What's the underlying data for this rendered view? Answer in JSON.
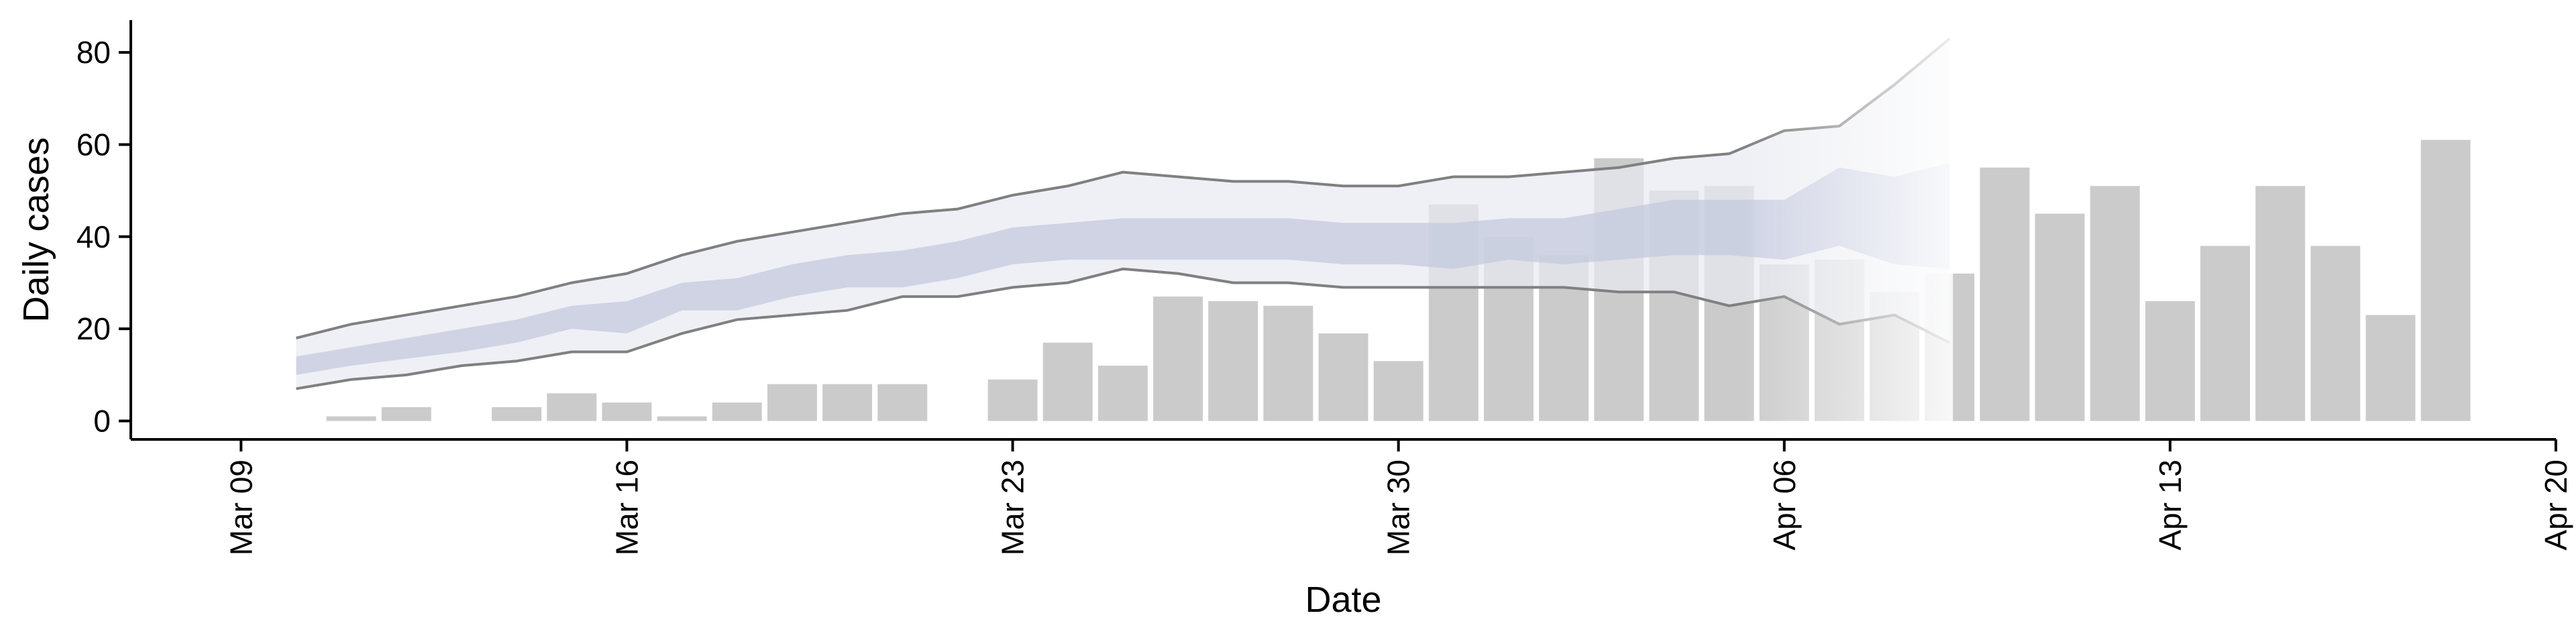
{
  "chart_data": {
    "type": "bar",
    "title": "",
    "xlabel": "Date",
    "ylabel": "Daily cases",
    "x_ticks": [
      "Mar 09",
      "Mar 16",
      "Mar 23",
      "Mar 30",
      "Apr 06",
      "Apr 13",
      "Apr 20"
    ],
    "x_tick_dates": [
      "2020-03-09",
      "2020-03-16",
      "2020-03-23",
      "2020-03-30",
      "2020-04-06",
      "2020-04-13",
      "2020-04-20"
    ],
    "y_ticks": [
      0,
      20,
      40,
      60,
      80
    ],
    "xlim": [
      "2020-03-07",
      "2020-04-20"
    ],
    "ylim": [
      -4,
      87
    ],
    "grid": false,
    "legend": "none",
    "colors": {
      "bars": "#cbcbcb",
      "outer_band": "#e8eaf1",
      "inner_band": "#c4c9dd",
      "interval_line": "#808080",
      "axis": "#000000"
    },
    "bars": [
      {
        "date": "2020-03-10",
        "value": 0
      },
      {
        "date": "2020-03-11",
        "value": 1
      },
      {
        "date": "2020-03-12",
        "value": 3
      },
      {
        "date": "2020-03-13",
        "value": 0
      },
      {
        "date": "2020-03-14",
        "value": 3
      },
      {
        "date": "2020-03-15",
        "value": 6
      },
      {
        "date": "2020-03-16",
        "value": 4
      },
      {
        "date": "2020-03-17",
        "value": 1
      },
      {
        "date": "2020-03-18",
        "value": 4
      },
      {
        "date": "2020-03-19",
        "value": 8
      },
      {
        "date": "2020-03-20",
        "value": 8
      },
      {
        "date": "2020-03-21",
        "value": 8
      },
      {
        "date": "2020-03-22",
        "value": 0
      },
      {
        "date": "2020-03-23",
        "value": 9
      },
      {
        "date": "2020-03-24",
        "value": 17
      },
      {
        "date": "2020-03-25",
        "value": 12
      },
      {
        "date": "2020-03-26",
        "value": 27
      },
      {
        "date": "2020-03-27",
        "value": 26
      },
      {
        "date": "2020-03-28",
        "value": 25
      },
      {
        "date": "2020-03-29",
        "value": 19
      },
      {
        "date": "2020-03-30",
        "value": 13
      },
      {
        "date": "2020-03-31",
        "value": 47
      },
      {
        "date": "2020-04-01",
        "value": 40
      },
      {
        "date": "2020-04-02",
        "value": 36
      },
      {
        "date": "2020-04-03",
        "value": 57
      },
      {
        "date": "2020-04-04",
        "value": 50
      },
      {
        "date": "2020-04-05",
        "value": 51
      },
      {
        "date": "2020-04-06",
        "value": 34
      },
      {
        "date": "2020-04-07",
        "value": 35
      },
      {
        "date": "2020-04-08",
        "value": 28
      },
      {
        "date": "2020-04-09",
        "value": 32
      },
      {
        "date": "2020-04-10",
        "value": 55
      },
      {
        "date": "2020-04-11",
        "value": 45
      },
      {
        "date": "2020-04-12",
        "value": 51
      },
      {
        "date": "2020-04-13",
        "value": 26
      },
      {
        "date": "2020-04-14",
        "value": 38
      },
      {
        "date": "2020-04-15",
        "value": 51
      },
      {
        "date": "2020-04-16",
        "value": 38
      },
      {
        "date": "2020-04-17",
        "value": 23
      },
      {
        "date": "2020-04-18",
        "value": 61
      }
    ],
    "interval": [
      {
        "date": "2020-03-10",
        "upper": 18,
        "inner_upper": 14,
        "inner_lower": 10,
        "lower": 7
      },
      {
        "date": "2020-03-11",
        "upper": 21,
        "inner_upper": 16,
        "inner_lower": 12,
        "lower": 9
      },
      {
        "date": "2020-03-12",
        "upper": 23,
        "inner_upper": 18,
        "inner_lower": 13.5,
        "lower": 10
      },
      {
        "date": "2020-03-13",
        "upper": 25,
        "inner_upper": 20,
        "inner_lower": 15,
        "lower": 12
      },
      {
        "date": "2020-03-14",
        "upper": 27,
        "inner_upper": 22,
        "inner_lower": 17,
        "lower": 13
      },
      {
        "date": "2020-03-15",
        "upper": 30,
        "inner_upper": 25,
        "inner_lower": 20,
        "lower": 15
      },
      {
        "date": "2020-03-16",
        "upper": 32,
        "inner_upper": 26,
        "inner_lower": 19,
        "lower": 15
      },
      {
        "date": "2020-03-17",
        "upper": 36,
        "inner_upper": 30,
        "inner_lower": 24,
        "lower": 19
      },
      {
        "date": "2020-03-18",
        "upper": 39,
        "inner_upper": 31,
        "inner_lower": 24,
        "lower": 22
      },
      {
        "date": "2020-03-19",
        "upper": 41,
        "inner_upper": 34,
        "inner_lower": 27,
        "lower": 23
      },
      {
        "date": "2020-03-20",
        "upper": 43,
        "inner_upper": 36,
        "inner_lower": 29,
        "lower": 24
      },
      {
        "date": "2020-03-21",
        "upper": 45,
        "inner_upper": 37,
        "inner_lower": 29,
        "lower": 27
      },
      {
        "date": "2020-03-22",
        "upper": 46,
        "inner_upper": 39,
        "inner_lower": 31,
        "lower": 27
      },
      {
        "date": "2020-03-23",
        "upper": 49,
        "inner_upper": 42,
        "inner_lower": 34,
        "lower": 29
      },
      {
        "date": "2020-03-24",
        "upper": 51,
        "inner_upper": 43,
        "inner_lower": 35,
        "lower": 30
      },
      {
        "date": "2020-03-25",
        "upper": 54,
        "inner_upper": 44,
        "inner_lower": 35,
        "lower": 33
      },
      {
        "date": "2020-03-26",
        "upper": 53,
        "inner_upper": 44,
        "inner_lower": 35,
        "lower": 32
      },
      {
        "date": "2020-03-27",
        "upper": 52,
        "inner_upper": 44,
        "inner_lower": 35,
        "lower": 30
      },
      {
        "date": "2020-03-28",
        "upper": 52,
        "inner_upper": 44,
        "inner_lower": 35,
        "lower": 30
      },
      {
        "date": "2020-03-29",
        "upper": 51,
        "inner_upper": 43,
        "inner_lower": 34,
        "lower": 29
      },
      {
        "date": "2020-03-30",
        "upper": 51,
        "inner_upper": 43,
        "inner_lower": 34,
        "lower": 29
      },
      {
        "date": "2020-03-31",
        "upper": 53,
        "inner_upper": 43,
        "inner_lower": 33,
        "lower": 29
      },
      {
        "date": "2020-04-01",
        "upper": 53,
        "inner_upper": 44,
        "inner_lower": 35,
        "lower": 29
      },
      {
        "date": "2020-04-02",
        "upper": 54,
        "inner_upper": 44,
        "inner_lower": 34,
        "lower": 29
      },
      {
        "date": "2020-04-03",
        "upper": 55,
        "inner_upper": 46,
        "inner_lower": 35,
        "lower": 28
      },
      {
        "date": "2020-04-04",
        "upper": 57,
        "inner_upper": 48,
        "inner_lower": 36,
        "lower": 28
      },
      {
        "date": "2020-04-05",
        "upper": 58,
        "inner_upper": 48,
        "inner_lower": 36,
        "lower": 25
      },
      {
        "date": "2020-04-06",
        "upper": 63,
        "inner_upper": 48,
        "inner_lower": 35,
        "lower": 27
      },
      {
        "date": "2020-04-07",
        "upper": 64,
        "inner_upper": 55,
        "inner_lower": 38,
        "lower": 21
      },
      {
        "date": "2020-04-08",
        "upper": 73,
        "inner_upper": 53,
        "inner_lower": 34,
        "lower": 23
      },
      {
        "date": "2020-04-09",
        "upper": 83,
        "inner_upper": 56,
        "inner_lower": 33,
        "lower": 17
      }
    ]
  }
}
